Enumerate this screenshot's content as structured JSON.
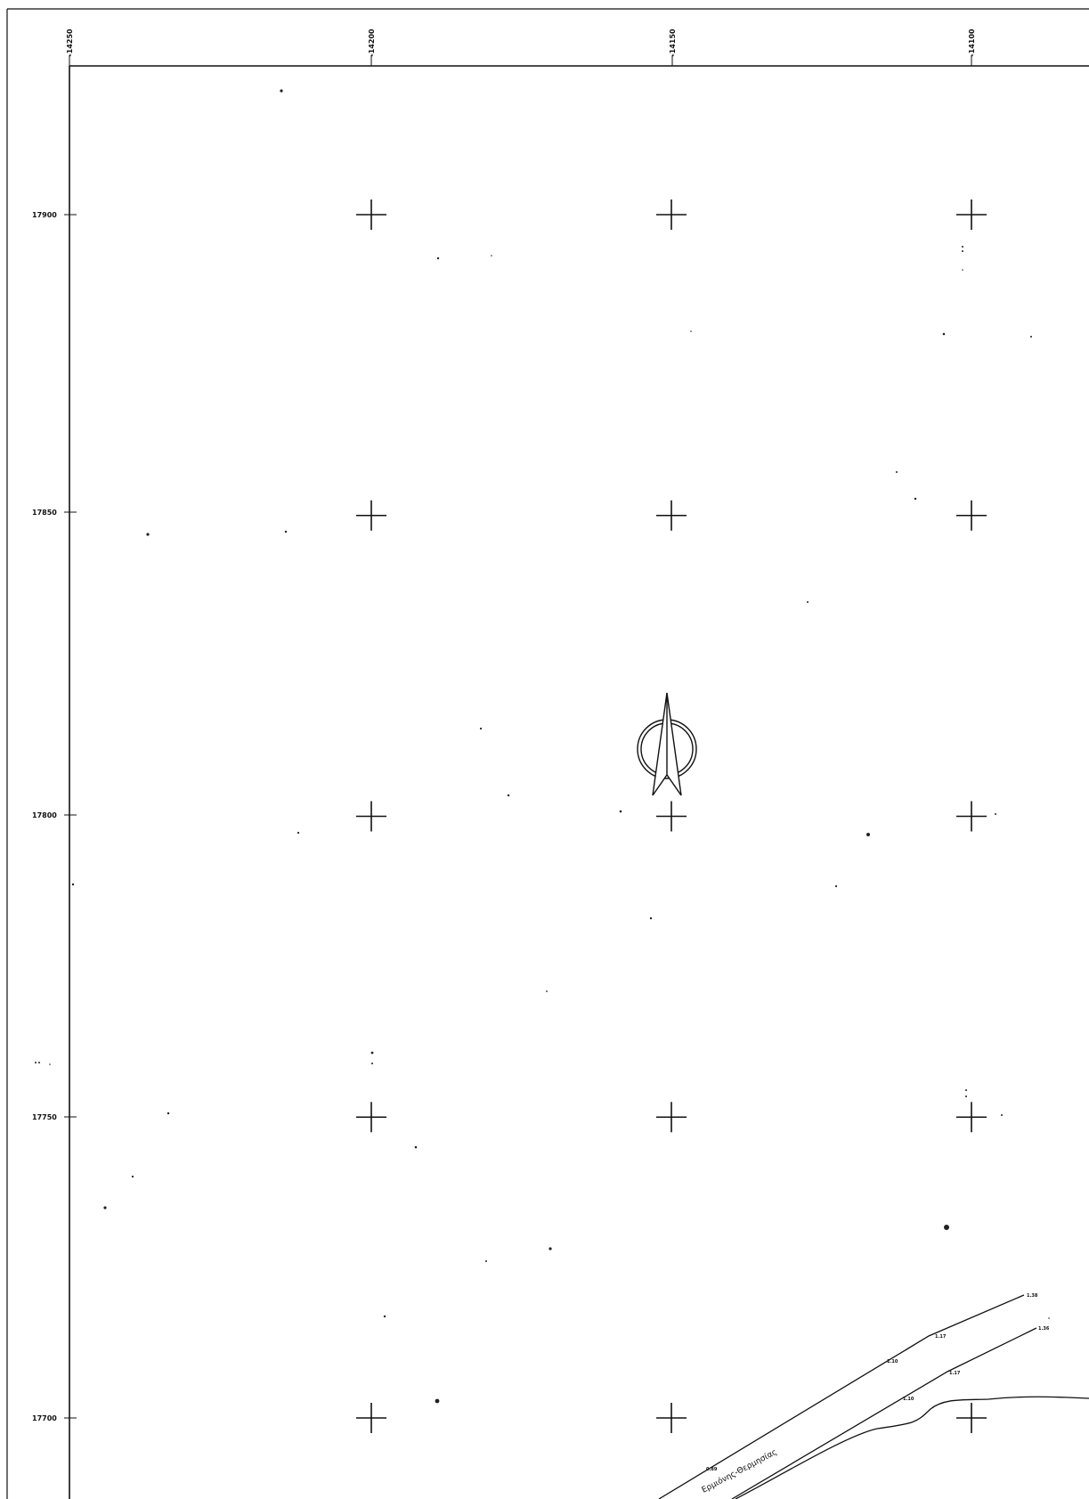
{
  "map": {
    "x_ticks": [
      "-14250",
      "-14200",
      "-14150",
      "-14100"
    ],
    "y_ticks": [
      "17900",
      "17850",
      "17800",
      "17750",
      "17700"
    ],
    "grid_crosses": [
      {
        "e": -14200,
        "n": 17900
      },
      {
        "e": -14150,
        "n": 17900
      },
      {
        "e": -14100,
        "n": 17900
      },
      {
        "e": -14200,
        "n": 17850
      },
      {
        "e": -14150,
        "n": 17850
      },
      {
        "e": -14100,
        "n": 17850
      },
      {
        "e": -14200,
        "n": 17800
      },
      {
        "e": -14150,
        "n": 17800
      },
      {
        "e": -14100,
        "n": 17800
      },
      {
        "e": -14200,
        "n": 17750
      },
      {
        "e": -14150,
        "n": 17750
      },
      {
        "e": -14100,
        "n": 17750
      },
      {
        "e": -14200,
        "n": 17700
      },
      {
        "e": -14150,
        "n": 17700
      },
      {
        "e": -14100,
        "n": 17700
      }
    ],
    "road_label": "Ερμιόνης-Θερμησίας",
    "elevations": [
      "1.38",
      "1.36",
      "1.17",
      "1.17",
      "1.10",
      "1.10",
      "0.89"
    ],
    "north_arrow_icon": "north-arrow-icon",
    "line_color": "#111111",
    "background": "#ffffff"
  }
}
